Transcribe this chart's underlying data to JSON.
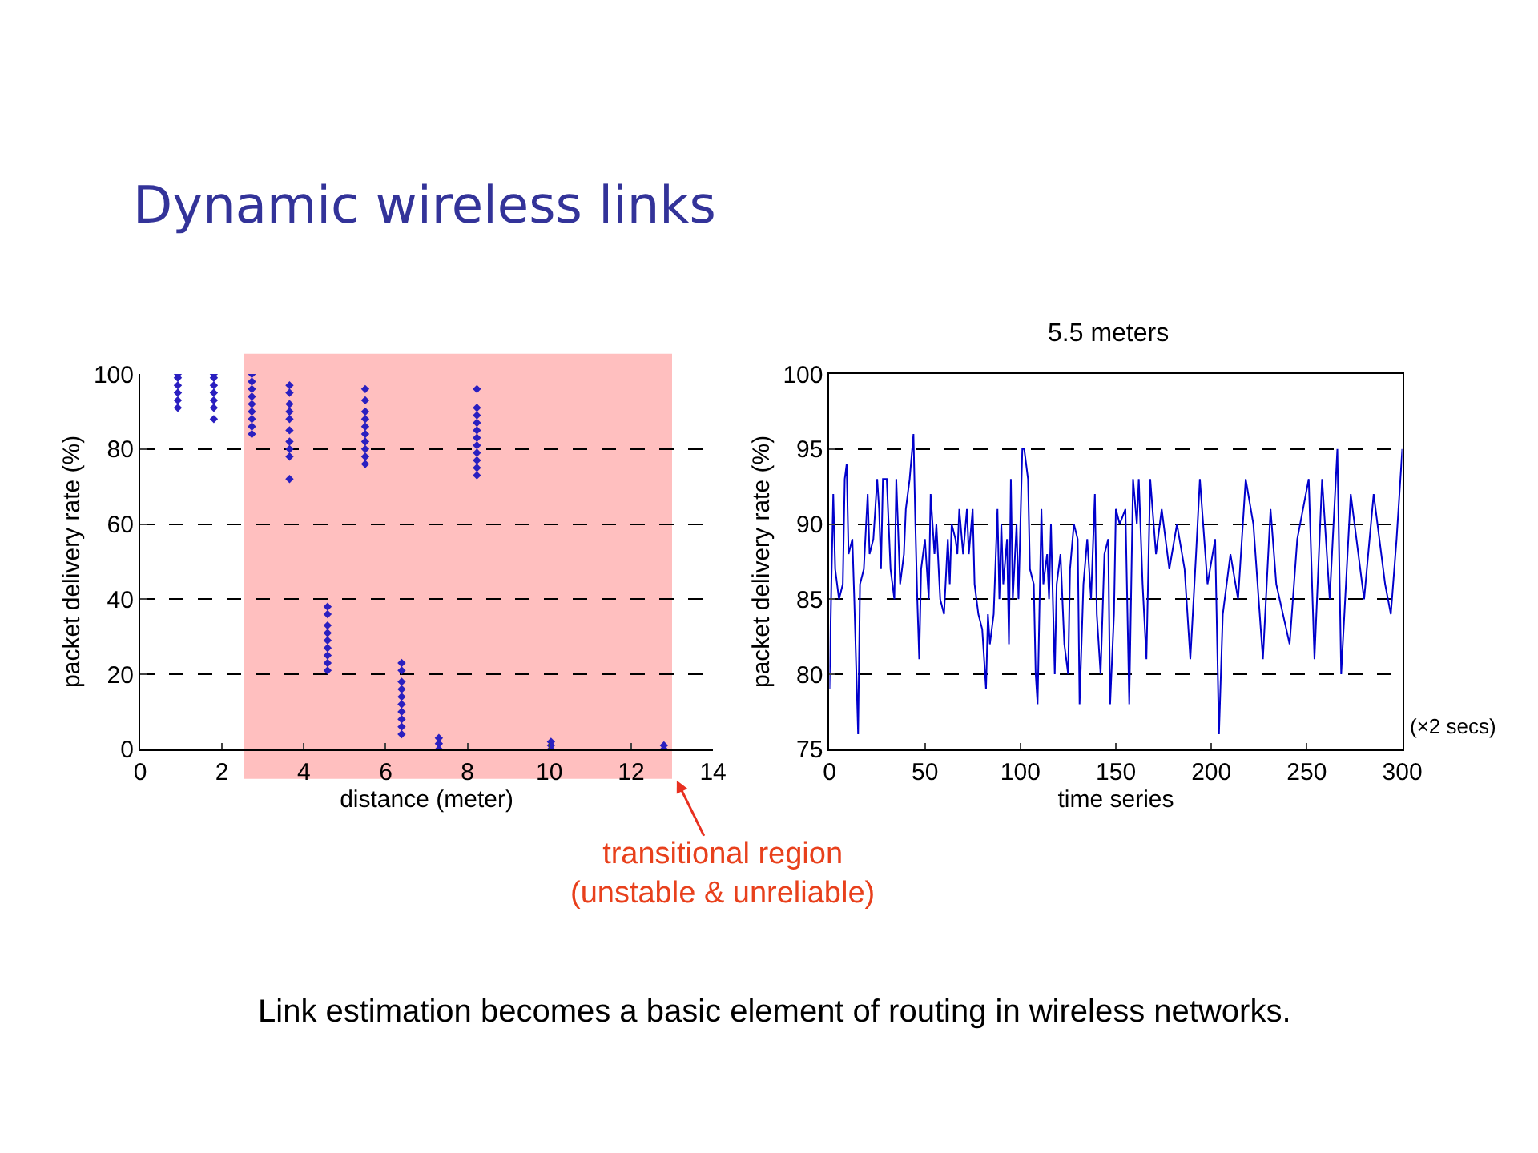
{
  "chart_data": [
    {
      "type": "scatter",
      "title": "Dynamic wireless links",
      "xlabel": "distance (meter)",
      "ylabel": "packet delivery rate (%)",
      "xlim": [
        0,
        14
      ],
      "xticks": [
        0,
        2,
        4,
        6,
        8,
        10,
        12,
        14
      ],
      "ylim": [
        0,
        100
      ],
      "yticks": [
        0,
        20,
        40,
        60,
        80,
        100
      ],
      "grid": "y",
      "marker": "diamond",
      "series": [
        {
          "color": "#2a1fc0",
          "x": [
            0.92,
            0.92,
            0.92,
            0.92,
            0.92,
            0.92,
            1.8,
            1.8,
            1.8,
            1.8,
            1.8,
            1.8,
            1.8,
            2.73,
            2.73,
            2.73,
            2.73,
            2.73,
            2.73,
            2.73,
            2.73,
            2.73,
            3.65,
            3.65,
            3.65,
            3.65,
            3.65,
            3.65,
            3.65,
            3.65,
            3.65,
            3.65,
            4.58,
            4.58,
            4.58,
            4.58,
            4.58,
            4.58,
            4.58,
            4.58,
            4.58,
            5.5,
            5.5,
            5.5,
            5.5,
            5.5,
            5.5,
            5.5,
            5.5,
            5.5,
            5.5,
            6.39,
            6.39,
            6.39,
            6.39,
            6.39,
            6.39,
            6.39,
            6.39,
            6.39,
            6.39,
            7.3,
            7.3,
            7.3,
            8.23,
            8.23,
            8.23,
            8.23,
            8.23,
            8.23,
            8.23,
            8.23,
            8.23,
            8.23,
            8.23,
            10.04,
            10.04,
            10.04,
            12.8,
            12.8
          ],
          "values": [
            91,
            93,
            95,
            97,
            99,
            100,
            88,
            91,
            93,
            95,
            97,
            99,
            100,
            84,
            86,
            88,
            90,
            92,
            94,
            96,
            98,
            100,
            72,
            78,
            80,
            82,
            85,
            88,
            90,
            92,
            95,
            97,
            21,
            23,
            25,
            27,
            29,
            31,
            33,
            36,
            38,
            76,
            78,
            80,
            82,
            84,
            86,
            88,
            90,
            93,
            96,
            4,
            6,
            8,
            10,
            12,
            14,
            16,
            18,
            21,
            23,
            0,
            1.5,
            3,
            73,
            75,
            77,
            79,
            81,
            83,
            85,
            87,
            89,
            91,
            96,
            0,
            1,
            2,
            0,
            1
          ]
        }
      ],
      "bands": [
        {
          "axis": "x",
          "from": 2.54,
          "to": 13.0,
          "color": "#ffbfbf"
        }
      ],
      "annotations": [
        "transitional region\n(unstable & unreliable)",
        "Link estimation becomes a basic element of routing in wireless networks."
      ]
    },
    {
      "type": "line",
      "title": "5.5 meters",
      "xlabel": "time series",
      "ylabel": "packet delivery rate (%)",
      "xlim": [
        0,
        300
      ],
      "xticks": [
        0,
        50,
        100,
        150,
        200,
        250,
        300
      ],
      "ylim": [
        75,
        100
      ],
      "yticks": [
        75,
        80,
        85,
        90,
        95,
        100
      ],
      "grid": "y",
      "marker": "none",
      "line_style": "solid",
      "series": [
        {
          "color": "#0000cc",
          "x": [
            0,
            1,
            2,
            3,
            5,
            7,
            8,
            9,
            10,
            12,
            13,
            15,
            16,
            18,
            20,
            21,
            23,
            25,
            26,
            27,
            28,
            30,
            32,
            34,
            35,
            37,
            39,
            40,
            42,
            44,
            45,
            46,
            47,
            48,
            50,
            52,
            53,
            55,
            56,
            58,
            60,
            62,
            63,
            64,
            66,
            67,
            68,
            70,
            72,
            73,
            75,
            76,
            78,
            80,
            82,
            83,
            84,
            86,
            88,
            89,
            90,
            91,
            93,
            94,
            95,
            96,
            98,
            99,
            101,
            102,
            104,
            105,
            107,
            108,
            109,
            111,
            112,
            114,
            115,
            116,
            118,
            119,
            121,
            123,
            125,
            126,
            128,
            130,
            131,
            133,
            135,
            137,
            139,
            140,
            142,
            144,
            146,
            147,
            149,
            150,
            152,
            155,
            157,
            159,
            161,
            162,
            164,
            166,
            168,
            171,
            174,
            178,
            182,
            186,
            189,
            192,
            194,
            198,
            202,
            204,
            206,
            210,
            214,
            218,
            222,
            227,
            231,
            234,
            241,
            245,
            251,
            254,
            258,
            262,
            266,
            268,
            273,
            280,
            285,
            291,
            294,
            297,
            300
          ],
          "values": [
            79,
            86,
            92,
            87,
            85,
            86,
            93,
            94,
            88,
            89,
            85,
            76,
            86,
            87,
            92,
            88,
            89,
            93,
            91,
            87,
            93,
            93,
            87,
            85,
            93,
            86,
            88,
            91,
            93,
            96,
            90,
            85,
            81,
            87,
            89,
            85,
            92,
            88,
            90,
            85,
            84,
            89,
            86,
            90,
            89,
            88,
            91,
            88,
            91,
            88,
            91,
            86,
            84,
            83,
            79,
            84,
            82,
            84,
            91,
            85,
            90,
            86,
            89,
            82,
            93,
            85,
            90,
            85,
            95,
            95,
            93,
            87,
            86,
            80,
            78,
            91,
            86,
            88,
            85,
            90,
            80,
            86,
            88,
            82,
            80,
            87,
            90,
            89,
            78,
            86,
            89,
            85,
            92,
            84,
            80,
            88,
            89,
            78,
            84,
            91,
            90,
            91,
            78,
            93,
            90,
            93,
            86,
            81,
            93,
            88,
            91,
            87,
            90,
            87,
            81,
            88,
            93,
            86,
            89,
            76,
            84,
            88,
            85,
            93,
            90,
            81,
            91,
            86,
            82,
            89,
            93,
            81,
            93,
            85,
            95,
            80,
            92,
            85,
            92,
            86,
            84,
            89,
            95
          ]
        }
      ],
      "annotations": [
        "(×2 secs)"
      ]
    }
  ]
}
